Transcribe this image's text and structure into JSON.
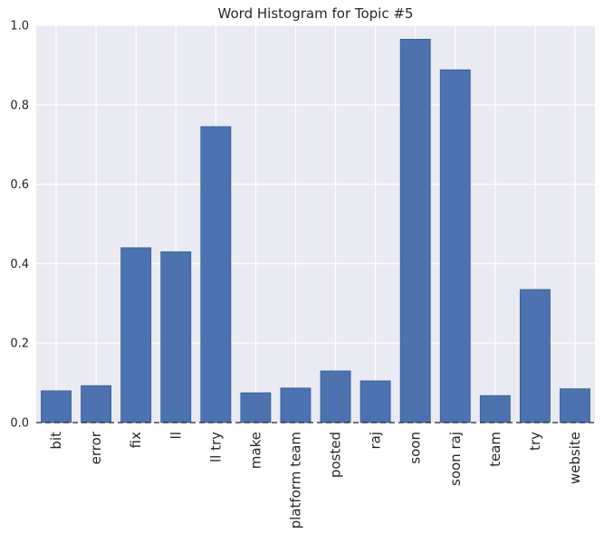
{
  "chart_data": {
    "type": "bar",
    "title": "Word Histogram for Topic #5",
    "xlabel": "",
    "ylabel": "",
    "categories": [
      "bit",
      "error",
      "fix",
      "ll",
      "ll try",
      "make",
      "platform team",
      "posted",
      "raj",
      "soon",
      "soon raj",
      "team",
      "try",
      "website"
    ],
    "values": [
      0.08,
      0.093,
      0.44,
      0.43,
      0.745,
      0.075,
      0.087,
      0.13,
      0.105,
      0.965,
      0.888,
      0.068,
      0.335,
      0.085
    ],
    "ylim": [
      0,
      1.0
    ],
    "yticks": [
      "0.0",
      "0.2",
      "0.4",
      "0.6",
      "0.8",
      "1.0"
    ],
    "grid": true,
    "legend": "none",
    "colors": {
      "bar": "#4c72b0",
      "background": "#eaeaf2",
      "grid": "#ffffff"
    }
  }
}
